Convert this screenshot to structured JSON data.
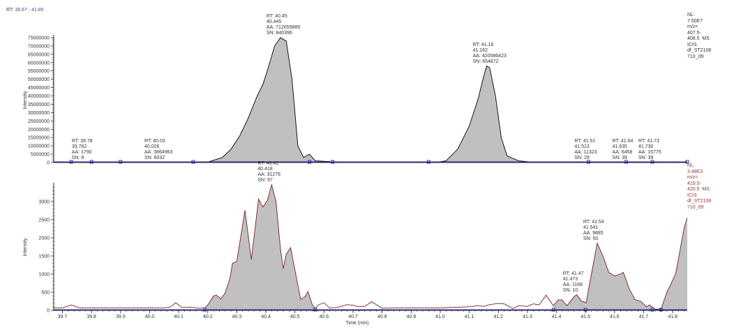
{
  "header": {
    "prefix": "RT:",
    "range": "39.67 - 41.85"
  },
  "chart_data": [
    {
      "type": "area",
      "ylabel": "Intensity",
      "xlim": [
        39.67,
        41.85
      ],
      "ylim": [
        0,
        75000000
      ],
      "yticks": [
        0,
        5000000,
        10000000,
        15000000,
        20000000,
        25000000,
        30000000,
        35000000,
        40000000,
        45000000,
        50000000,
        55000000,
        60000000,
        65000000,
        70000000,
        75000000
      ],
      "line_color": "#000000",
      "fill_color": "#c0c0c0",
      "baseline_color": "#3030b0",
      "info": "NL:\n7.50E7\nm/z=\n407.5-\n408.5  MS\nICIS\ndf_ST2108\n710_09",
      "info_color": "#333333",
      "points": [
        [
          39.67,
          0
        ],
        [
          40.15,
          0
        ],
        [
          40.2,
          300000
        ],
        [
          40.25,
          3000000
        ],
        [
          40.28,
          8000000
        ],
        [
          40.31,
          16000000
        ],
        [
          40.34,
          27000000
        ],
        [
          40.37,
          40000000
        ],
        [
          40.39,
          47000000
        ],
        [
          40.41,
          58000000
        ],
        [
          40.43,
          70000000
        ],
        [
          40.45,
          75000000
        ],
        [
          40.47,
          73000000
        ],
        [
          40.49,
          50000000
        ],
        [
          40.51,
          10000000
        ],
        [
          40.53,
          3000000
        ],
        [
          40.55,
          5000000
        ],
        [
          40.57,
          1000000
        ],
        [
          40.65,
          300000
        ],
        [
          40.98,
          0
        ],
        [
          41.02,
          1000000
        ],
        [
          41.06,
          8000000
        ],
        [
          41.1,
          22000000
        ],
        [
          41.13,
          38000000
        ],
        [
          41.15,
          52000000
        ],
        [
          41.16,
          58000000
        ],
        [
          41.17,
          57000000
        ],
        [
          41.19,
          40000000
        ],
        [
          41.21,
          15000000
        ],
        [
          41.23,
          4000000
        ],
        [
          41.27,
          1000000
        ],
        [
          41.32,
          200000
        ],
        [
          41.85,
          0
        ]
      ],
      "filled_ranges": [
        [
          40.18,
          40.62
        ],
        [
          40.98,
          41.35
        ]
      ],
      "baseline_markers": [
        39.73,
        39.8,
        39.9,
        40.15,
        40.55,
        40.63,
        40.96,
        41.51,
        41.64,
        41.73,
        41.85
      ],
      "peak_labels": [
        {
          "rt": 39.78,
          "lines": [
            "RT: 39.78",
            "39.782",
            "AA: 1790",
            "SN: 8"
          ]
        },
        {
          "rt": 40.03,
          "lines": [
            "RT: 40.03",
            "40.026",
            "AA: 3864963",
            "SN: 6032"
          ]
        },
        {
          "rt": 40.45,
          "lines": [
            "RT: 40.45",
            "40.445",
            "AA: 712659889",
            "SN: 840396"
          ]
        },
        {
          "rt": 41.16,
          "lines": [
            "RT: 41.16",
            "41.162",
            "AA: 420586423",
            "SN: 654872"
          ]
        },
        {
          "rt": 41.51,
          "lines": [
            "RT: 41.51",
            "41.513",
            "AA: 11323",
            "SN: 29"
          ]
        },
        {
          "rt": 41.64,
          "lines": [
            "RT: 41.64",
            "41.635",
            "AA: 6458",
            "SN: 39"
          ]
        },
        {
          "rt": 41.73,
          "lines": [
            "RT: 41.73",
            "41.730",
            "AA: 15775",
            "SN: 39"
          ]
        }
      ]
    },
    {
      "type": "area",
      "ylabel": "Intensity",
      "xlabel": "Time (min)",
      "xlim": [
        39.67,
        41.85
      ],
      "ylim": [
        0,
        3480
      ],
      "yticks": [
        0,
        500,
        1000,
        1500,
        2000,
        2500,
        3000
      ],
      "xticks": [
        39.7,
        39.8,
        39.9,
        40.0,
        40.1,
        40.2,
        40.3,
        40.4,
        40.5,
        40.6,
        40.7,
        40.8,
        40.9,
        41.0,
        41.1,
        41.2,
        41.3,
        41.4,
        41.5,
        41.6,
        41.7,
        41.8
      ],
      "line_color": "#7a1f1f",
      "fill_color": "#c0c0c0",
      "baseline_color": "#3030b0",
      "info": "NL:\n3.48E3\nm/z=\n419.5-\n420.5  MS\nICIS\ndf_ST2108\n710_09",
      "info_color": "#8b3a3a",
      "points": [
        [
          39.67,
          70
        ],
        [
          39.7,
          70
        ],
        [
          39.73,
          150
        ],
        [
          39.76,
          70
        ],
        [
          40.05,
          70
        ],
        [
          40.07,
          90
        ],
        [
          40.09,
          210
        ],
        [
          40.11,
          80
        ],
        [
          40.14,
          90
        ],
        [
          40.17,
          60
        ],
        [
          40.19,
          70
        ],
        [
          40.2,
          150
        ],
        [
          40.22,
          400
        ],
        [
          40.23,
          420
        ],
        [
          40.245,
          320
        ],
        [
          40.26,
          480
        ],
        [
          40.277,
          900
        ],
        [
          40.285,
          1300
        ],
        [
          40.3,
          1350
        ],
        [
          40.328,
          2760
        ],
        [
          40.35,
          1400
        ],
        [
          40.375,
          3070
        ],
        [
          40.39,
          2850
        ],
        [
          40.405,
          3030
        ],
        [
          40.42,
          3460
        ],
        [
          40.435,
          3000
        ],
        [
          40.45,
          1700
        ],
        [
          40.46,
          1150
        ],
        [
          40.47,
          1550
        ],
        [
          40.485,
          1730
        ],
        [
          40.51,
          700
        ],
        [
          40.52,
          300
        ],
        [
          40.535,
          380
        ],
        [
          40.545,
          520
        ],
        [
          40.56,
          150
        ],
        [
          40.57,
          50
        ],
        [
          40.58,
          150
        ],
        [
          40.6,
          210
        ],
        [
          40.62,
          60
        ],
        [
          40.65,
          90
        ],
        [
          40.68,
          160
        ],
        [
          40.7,
          140
        ],
        [
          40.72,
          100
        ],
        [
          40.74,
          110
        ],
        [
          40.764,
          237
        ],
        [
          40.8,
          60
        ],
        [
          40.85,
          70
        ],
        [
          41.0,
          70
        ],
        [
          41.1,
          100
        ],
        [
          41.13,
          130
        ],
        [
          41.15,
          110
        ],
        [
          41.17,
          160
        ],
        [
          41.2,
          190
        ],
        [
          41.22,
          180
        ],
        [
          41.25,
          50
        ],
        [
          41.27,
          130
        ],
        [
          41.3,
          110
        ],
        [
          41.32,
          180
        ],
        [
          41.34,
          150
        ],
        [
          41.364,
          420
        ],
        [
          41.389,
          128
        ],
        [
          41.406,
          290
        ],
        [
          41.419,
          290
        ],
        [
          41.436,
          128
        ],
        [
          41.461,
          385
        ],
        [
          41.47,
          430
        ],
        [
          41.486,
          256
        ],
        [
          41.502,
          210
        ],
        [
          41.52,
          1000
        ],
        [
          41.54,
          1850
        ],
        [
          41.56,
          1500
        ],
        [
          41.58,
          1050
        ],
        [
          41.6,
          950
        ],
        [
          41.62,
          1000
        ],
        [
          41.63,
          1050
        ],
        [
          41.65,
          600
        ],
        [
          41.67,
          300
        ],
        [
          41.69,
          250
        ],
        [
          41.71,
          100
        ],
        [
          41.72,
          150
        ],
        [
          41.74,
          30
        ],
        [
          41.76,
          40
        ],
        [
          41.78,
          500
        ],
        [
          41.81,
          1000
        ],
        [
          41.84,
          2300
        ],
        [
          41.85,
          2550
        ]
      ],
      "filled_ranges": [
        [
          40.19,
          40.57
        ],
        [
          41.39,
          41.5
        ],
        [
          41.5,
          41.73
        ],
        [
          41.76,
          41.85
        ]
      ],
      "baseline_markers": [
        40.19,
        40.57,
        41.39,
        41.5,
        41.73,
        41.76
      ],
      "peak_labels": [
        {
          "rt": 40.42,
          "lines": [
            "RT: 40.42",
            "40.418",
            "AA: 31276",
            "SN: 97"
          ]
        },
        {
          "rt": 41.47,
          "lines": [
            "RT: 41.47",
            "41.473",
            "AA: 1168",
            "SN: 10"
          ]
        },
        {
          "rt": 41.54,
          "lines": [
            "RT: 41.54",
            "41.541",
            "AA: 9885",
            "SN: 50"
          ]
        }
      ]
    }
  ]
}
